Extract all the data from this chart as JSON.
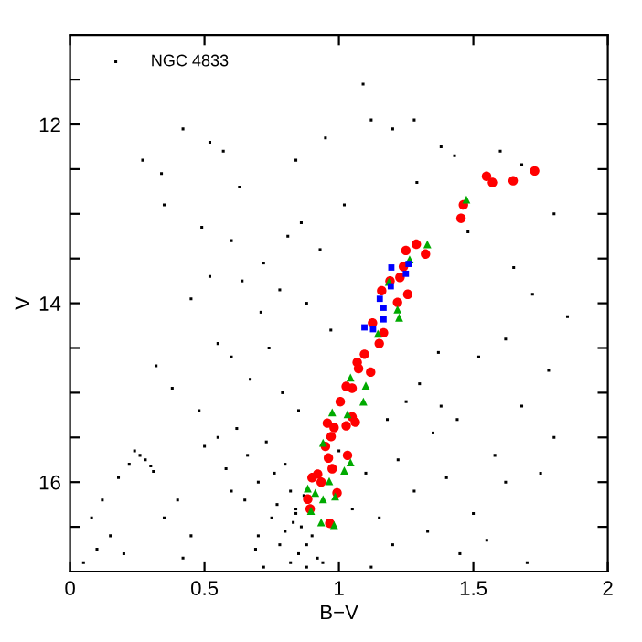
{
  "chart_data": {
    "type": "scatter",
    "xlabel": "B−V",
    "ylabel": "V",
    "annotations": [
      "NGC 4833"
    ],
    "xlim": [
      0,
      2
    ],
    "ylim": [
      17,
      11
    ],
    "xticks": [
      0,
      0.5,
      1,
      1.5,
      2
    ],
    "yticks": [
      {
        "value": 11.5,
        "label": null
      },
      12,
      {
        "value": 12.5,
        "label": null
      },
      {
        "value": 13,
        "label": null
      },
      {
        "value": 13.5,
        "label": null
      },
      14,
      {
        "value": 14.5,
        "label": null
      },
      {
        "value": 15,
        "label": null
      },
      {
        "value": 15.5,
        "label": null
      },
      16,
      {
        "value": 16.5,
        "label": null
      }
    ],
    "grid": false,
    "legend": false,
    "series": [
      {
        "color": "#000000",
        "marker": "square",
        "x": [
          0.17,
          1.09,
          1.12,
          1.2,
          1.28,
          0.95,
          0.42,
          0.52,
          0.57,
          0.27,
          0.34,
          0.63,
          0.84,
          1.38,
          1.43,
          1.29,
          0.49,
          0.35,
          1.6,
          1.68,
          1.8,
          1.65,
          0.86,
          1.02,
          0.93,
          0.6,
          0.72,
          0.81,
          1.48,
          1.72,
          1.85,
          1.78,
          1.62,
          0.45,
          0.52,
          0.64,
          0.71,
          0.78,
          0.88,
          0.97,
          1.37,
          1.52,
          1.68,
          1.8,
          0.32,
          0.38,
          0.48,
          0.55,
          0.6,
          0.67,
          0.74,
          0.79,
          0.85,
          1.25,
          1.35,
          1.44,
          1.58,
          1.75,
          0.28,
          0.3,
          0.26,
          0.24,
          0.31,
          0.22,
          0.18,
          0.12,
          0.08,
          0.15,
          0.2,
          0.05,
          0.1,
          0.35,
          0.4,
          0.5,
          0.58,
          0.62,
          0.66,
          0.7,
          0.73,
          0.76,
          0.8,
          0.82,
          0.84,
          0.86,
          0.88,
          0.9,
          0.92,
          0.75,
          0.78,
          0.82,
          0.85,
          0.88,
          0.8,
          0.77,
          0.83,
          0.87,
          0.84,
          0.94,
          0.7,
          0.65,
          0.72,
          0.69,
          0.96,
          1.0,
          1.05,
          1.1,
          1.15,
          1.2,
          1.28,
          1.33,
          1.4,
          1.45,
          1.5,
          1.55,
          1.62,
          1.7,
          1.12,
          1.18,
          1.22,
          1.3,
          1.38,
          0.55,
          0.6,
          0.45,
          0.42
        ],
        "values": [
          11.3,
          11.55,
          11.95,
          12.05,
          11.95,
          12.15,
          12.05,
          12.2,
          12.3,
          12.4,
          12.55,
          12.7,
          12.4,
          12.25,
          12.35,
          12.65,
          13.15,
          12.9,
          12.3,
          12.45,
          13.0,
          13.6,
          13.1,
          12.9,
          13.4,
          13.3,
          13.55,
          13.25,
          13.2,
          13.9,
          14.15,
          14.75,
          14.4,
          13.95,
          13.7,
          13.75,
          14.1,
          13.85,
          14.0,
          14.3,
          14.55,
          14.6,
          15.15,
          15.5,
          14.7,
          14.95,
          15.2,
          14.45,
          14.6,
          14.85,
          14.5,
          15.0,
          15.2,
          15.1,
          15.45,
          15.3,
          15.7,
          15.9,
          15.75,
          15.82,
          15.7,
          15.65,
          15.88,
          15.8,
          15.95,
          16.2,
          16.4,
          16.6,
          16.8,
          16.9,
          16.75,
          16.4,
          16.2,
          15.6,
          15.85,
          15.4,
          15.7,
          16.0,
          15.55,
          15.9,
          15.8,
          16.1,
          16.3,
          16.5,
          16.7,
          16.6,
          16.85,
          16.4,
          16.7,
          16.9,
          16.8,
          16.95,
          16.55,
          16.25,
          16.45,
          16.15,
          16.35,
          16.9,
          16.6,
          16.2,
          16.95,
          16.75,
          15.5,
          15.65,
          16.3,
          15.9,
          16.4,
          16.7,
          16.1,
          16.55,
          15.95,
          16.8,
          16.35,
          16.65,
          16.0,
          16.9,
          16.95,
          15.3,
          15.75,
          14.9,
          15.15,
          15.5,
          16.1,
          16.6,
          16.85
        ]
      },
      {
        "color": "#ff0000",
        "marker": "circle",
        "x": [
          1.728,
          1.648,
          1.571,
          1.549,
          1.463,
          1.454,
          1.288,
          1.322,
          1.249,
          1.24,
          1.227,
          1.19,
          1.159,
          1.256,
          1.218,
          1.125,
          1.166,
          1.15,
          1.095,
          1.068,
          1.073,
          1.118,
          1.027,
          1.049,
          1.005,
          1.049,
          1.061,
          0.957,
          0.982,
          1.027,
          0.971,
          0.95,
          1.032,
          0.961,
          0.975,
          0.9,
          0.921,
          0.934,
          0.884,
          0.893,
          0.966,
          0.993
        ],
        "values": [
          12.52,
          12.63,
          12.65,
          12.58,
          12.9,
          13.05,
          13.34,
          13.45,
          13.41,
          13.59,
          13.71,
          13.75,
          13.86,
          13.9,
          13.99,
          14.22,
          14.33,
          14.45,
          14.57,
          14.66,
          14.73,
          14.77,
          14.93,
          14.95,
          15.1,
          15.27,
          15.33,
          15.34,
          15.39,
          15.37,
          15.49,
          15.6,
          15.7,
          15.73,
          15.85,
          15.95,
          15.91,
          16.0,
          16.19,
          16.3,
          16.46,
          16.12
        ]
      },
      {
        "color": "#00aa00",
        "marker": "triangle",
        "x": [
          1.474,
          1.329,
          1.263,
          1.186,
          1.218,
          1.224,
          1.145,
          1.043,
          1.1,
          1.091,
          1.032,
          0.975,
          0.941,
          1.043,
          1.02,
          0.964,
          0.884,
          0.912,
          0.941,
          0.986,
          0.934,
          0.982,
          0.896
        ],
        "values": [
          12.84,
          13.34,
          13.51,
          13.76,
          14.07,
          14.16,
          14.34,
          14.83,
          14.92,
          15.1,
          15.24,
          15.22,
          15.56,
          15.78,
          15.87,
          15.99,
          16.07,
          16.12,
          16.19,
          16.16,
          16.45,
          16.48,
          16.32
        ]
      },
      {
        "color": "#0000ff",
        "marker": "square",
        "x": [
          1.195,
          1.259,
          1.249,
          1.193,
          1.152,
          1.166,
          1.166,
          1.095,
          1.127
        ],
        "values": [
          13.6,
          13.56,
          13.67,
          13.81,
          13.95,
          14.05,
          14.18,
          14.27,
          14.29
        ]
      }
    ]
  }
}
